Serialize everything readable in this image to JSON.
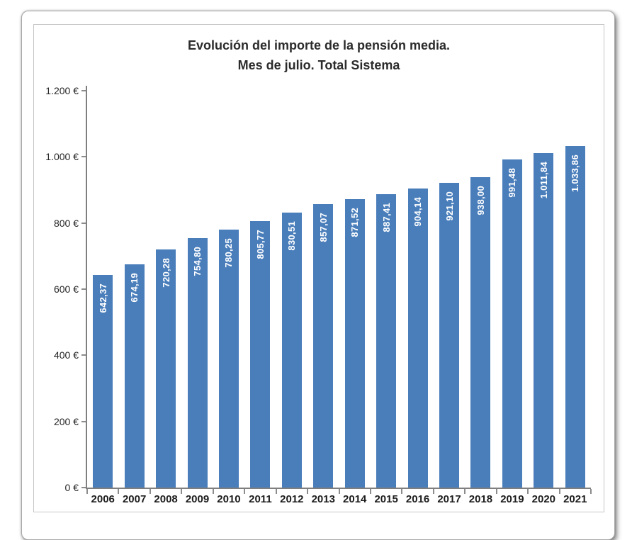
{
  "chart_data": {
    "type": "bar",
    "title": "Evolución del importe de la pensión media. Mes de julio. Total Sistema",
    "title_line1": "Evolución del importe de la pensión media.",
    "title_line2": "Mes de julio. Total Sistema",
    "xlabel": "",
    "ylabel": "",
    "categories": [
      "2006",
      "2007",
      "2008",
      "2009",
      "2010",
      "2011",
      "2012",
      "2013",
      "2014",
      "2015",
      "2016",
      "2017",
      "2018",
      "2019",
      "2020",
      "2021"
    ],
    "values": [
      642.37,
      674.19,
      720.28,
      754.8,
      780.25,
      805.77,
      830.51,
      857.07,
      871.52,
      887.41,
      904.14,
      921.1,
      938.0,
      991.48,
      1011.84,
      1033.86
    ],
    "value_labels": [
      "642,37",
      "674,19",
      "720,28",
      "754,80",
      "780,25",
      "805,77",
      "830,51",
      "857,07",
      "871,52",
      "887,41",
      "904,14",
      "921,10",
      "938,00",
      "991,48",
      "1.011,84",
      "1.033,86"
    ],
    "ylim": [
      0,
      1200
    ],
    "ytick_step": 200,
    "ytick_labels": [
      "0 €",
      "200 €",
      "400 €",
      "600 €",
      "800 €",
      "1.000 €",
      "1.200 €"
    ],
    "grid": false,
    "legend_position": "none",
    "colors": {
      "bar": "#4a7ebb",
      "bar_label": "#ffffff",
      "axis": "#7f7f7f",
      "tick_text": "#262626",
      "title_text": "#2b2b2b"
    }
  }
}
